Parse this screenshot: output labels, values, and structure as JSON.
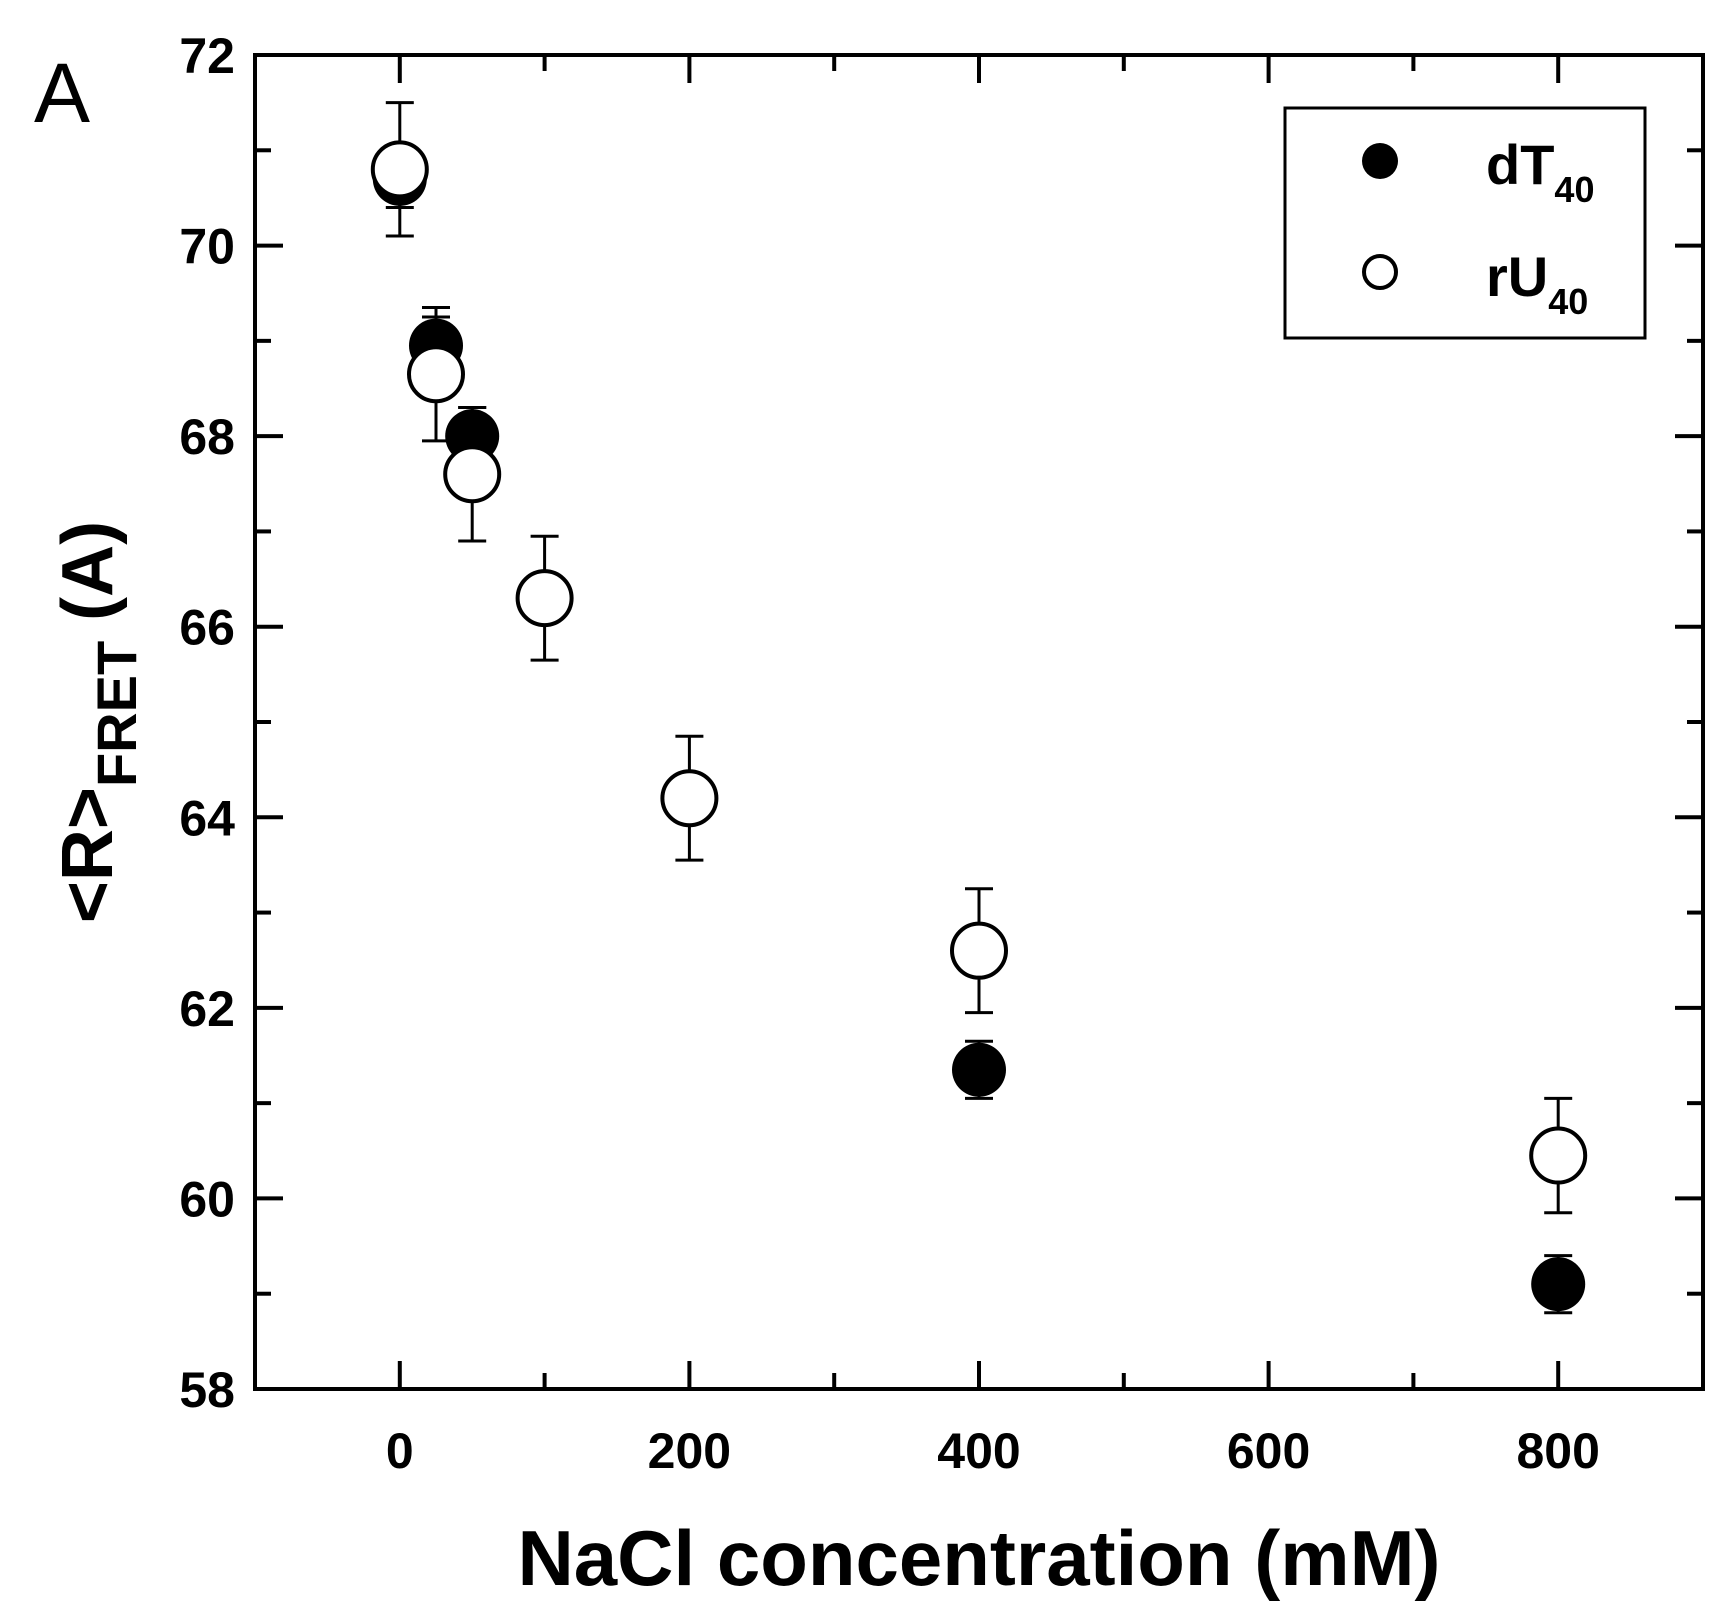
{
  "panel_label": "A",
  "chart_data": {
    "type": "scatter",
    "xlabel": "NaCl concentration (mM)",
    "ylabel": {
      "main": "<R>",
      "sub": "FRET",
      "tail": " (A)"
    },
    "xlim": [
      -100,
      900
    ],
    "ylim": [
      58,
      72
    ],
    "x_ticks_major": [
      0,
      200,
      400,
      600,
      800
    ],
    "x_ticks_minor": [
      100,
      300,
      500,
      700
    ],
    "x_tick_labels": [
      "0",
      "200",
      "400",
      "600",
      "800"
    ],
    "y_ticks_major": [
      58,
      60,
      62,
      64,
      66,
      68,
      70,
      72
    ],
    "y_ticks_minor": [
      59,
      61,
      63,
      65,
      67,
      69,
      71
    ],
    "y_tick_labels": [
      "58",
      "60",
      "62",
      "64",
      "66",
      "68",
      "70",
      "72"
    ],
    "grid": false,
    "legend_position": "top-right",
    "series": [
      {
        "name": {
          "main": "dT",
          "sub": "40"
        },
        "marker": "filled-circle",
        "color": "#000000",
        "points": [
          {
            "x": 0,
            "y": 70.7,
            "err": 0.3
          },
          {
            "x": 25,
            "y": 68.95,
            "err": 0.3
          },
          {
            "x": 50,
            "y": 68.0,
            "err": 0.3
          },
          {
            "x": 400,
            "y": 61.35,
            "err": 0.3
          },
          {
            "x": 800,
            "y": 59.1,
            "err": 0.3
          }
        ]
      },
      {
        "name": {
          "main": "rU",
          "sub": "40"
        },
        "marker": "open-circle",
        "color": "#000000",
        "points": [
          {
            "x": 0,
            "y": 70.8,
            "err": 0.7
          },
          {
            "x": 25,
            "y": 68.65,
            "err": 0.7
          },
          {
            "x": 50,
            "y": 67.6,
            "err": 0.7
          },
          {
            "x": 100,
            "y": 66.3,
            "err": 0.65
          },
          {
            "x": 200,
            "y": 64.2,
            "err": 0.65
          },
          {
            "x": 400,
            "y": 62.6,
            "err": 0.65
          },
          {
            "x": 800,
            "y": 60.45,
            "err": 0.6
          }
        ]
      }
    ]
  }
}
